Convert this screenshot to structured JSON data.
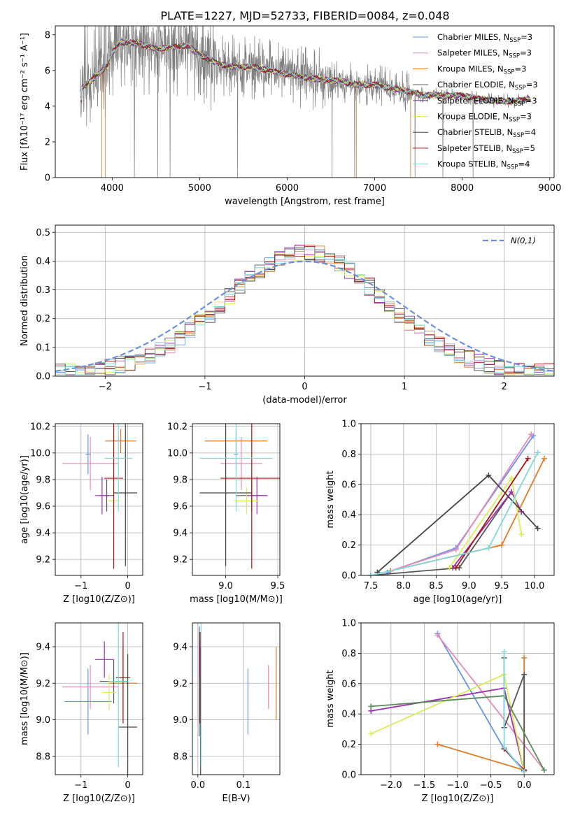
{
  "title": "PLATE=1227, MJD=52733, FIBERID=0084, z=0.048",
  "colors": [
    "#6495ed",
    "#e68ab6",
    "#e07b2a",
    "#555555",
    "#9b30b0",
    "#d7ee5a",
    "#444444",
    "#aa1111",
    "#7fd8dd"
  ],
  "chart_data": [
    {
      "type": "line",
      "id": "spectrum",
      "xlabel": "wavelength [Angstrom, rest frame]",
      "ylabel": "Flux [fλ10⁻¹⁷ erg cm⁻² s⁻¹ A⁻¹]",
      "xlim": [
        3350,
        9050
      ],
      "ylim": [
        0,
        8.5
      ],
      "xticks": [
        4000,
        5000,
        6000,
        7000,
        8000,
        9000
      ],
      "yticks": [
        0,
        2,
        4,
        6,
        8
      ],
      "legend_position": "top-right",
      "legend": [
        {
          "label": "Chabrier MILES, N",
          "sub": "SSP",
          "suffix": "=3",
          "color": "#6495ed"
        },
        {
          "label": "Salpeter MILES, N",
          "sub": "SSP",
          "suffix": "=3",
          "color": "#e68ab6"
        },
        {
          "label": "Kroupa MILES, N",
          "sub": "SSP",
          "suffix": "=3",
          "color": "#e07b2a"
        },
        {
          "label": "Chabrier ELODIE, N",
          "sub": "SSP",
          "suffix": "=3",
          "color": "#555555"
        },
        {
          "label": "Salpeter ELODIE, N",
          "sub": "SSP",
          "suffix": "=3",
          "color": "#9b30b0"
        },
        {
          "label": "Kroupa ELODIE, N",
          "sub": "SSP",
          "suffix": "=3",
          "color": "#d7ee5a"
        },
        {
          "label": "Chabrier STELIB, N",
          "sub": "SSP",
          "suffix": "=4",
          "color": "#444444"
        },
        {
          "label": "Salpeter STELIB, N",
          "sub": "SSP",
          "suffix": "=5",
          "color": "#aa1111"
        },
        {
          "label": "Kroupa STELIB, N",
          "sub": "SSP",
          "suffix": "=4",
          "color": "#7fd8dd"
        }
      ],
      "continuum": [
        [
          3650,
          5.0
        ],
        [
          3800,
          5.6
        ],
        [
          3950,
          6.3
        ],
        [
          4000,
          7.0
        ],
        [
          4100,
          7.6
        ],
        [
          4300,
          7.5
        ],
        [
          4500,
          7.2
        ],
        [
          4700,
          7.3
        ],
        [
          4850,
          7.4
        ],
        [
          5000,
          6.9
        ],
        [
          5200,
          6.4
        ],
        [
          5400,
          6.2
        ],
        [
          5600,
          6.2
        ],
        [
          5800,
          6.0
        ],
        [
          6000,
          5.8
        ],
        [
          6200,
          5.6
        ],
        [
          6400,
          5.5
        ],
        [
          6600,
          5.4
        ],
        [
          6800,
          5.2
        ],
        [
          7000,
          5.2
        ],
        [
          7200,
          5.0
        ],
        [
          7400,
          4.8
        ],
        [
          7600,
          4.6
        ],
        [
          7800,
          4.6
        ],
        [
          8000,
          4.6
        ],
        [
          8200,
          4.4
        ],
        [
          8400,
          4.3
        ],
        [
          8600,
          4.3
        ],
        [
          8750,
          4.4
        ]
      ]
    },
    {
      "type": "histogram",
      "id": "residuals",
      "xlabel": "(data-model)/error",
      "ylabel": "Normed distribution",
      "xlim": [
        -2.5,
        2.5
      ],
      "ylim": [
        0,
        0.525
      ],
      "xticks": [
        -2,
        -1,
        0,
        1,
        2
      ],
      "yticks": [
        0.0,
        0.1,
        0.2,
        0.3,
        0.4,
        0.5
      ],
      "bin_width": 0.1,
      "bin_start": -2.5,
      "legend_position": "top-right",
      "gaussian_label": "N(0,1)",
      "gaussian_color": "#6a8fe0"
    },
    {
      "type": "scatter",
      "id": "age-vs-Z",
      "xlabel": "Z [log10(Z/Z⊙)]",
      "ylabel": "age [log10(age/yr)]",
      "xlim": [
        -1.55,
        0.32
      ],
      "ylim": [
        9.08,
        10.22
      ],
      "xticks": [
        -1,
        0
      ],
      "yticks": [
        9.2,
        9.4,
        9.6,
        9.8,
        10.0,
        10.2
      ],
      "points": [
        {
          "x": -0.85,
          "y": 9.99,
          "xerr": 0.05,
          "yerr": 0.15,
          "color": "#6495ed"
        },
        {
          "x": -0.8,
          "y": 9.92,
          "xerr": 0.6,
          "yerr": 0.2,
          "color": "#e68ab6"
        },
        {
          "x": -0.15,
          "y": 10.09,
          "xerr": 0.33,
          "yerr": 0.09,
          "color": "#e07b2a"
        },
        {
          "x": -0.45,
          "y": 9.68,
          "xerr": 0.15,
          "yerr": 0.12,
          "color": "#555555"
        },
        {
          "x": -0.55,
          "y": 9.68,
          "xerr": 0.15,
          "yerr": 0.14,
          "color": "#9b30b0"
        },
        {
          "x": -0.3,
          "y": 9.64,
          "xerr": 0.12,
          "yerr": 0.1,
          "color": "#d7ee5a"
        },
        {
          "x": -0.05,
          "y": 9.7,
          "xerr": 0.25,
          "yerr": 0.55,
          "color": "#444444"
        },
        {
          "x": -0.3,
          "y": 9.81,
          "xerr": 0.2,
          "yerr": 0.68,
          "color": "#aa1111"
        },
        {
          "x": -0.2,
          "y": 9.96,
          "xerr": 0.3,
          "yerr": 0.4,
          "color": "#7fd8dd"
        }
      ]
    },
    {
      "type": "scatter",
      "id": "age-vs-mass",
      "xlabel": "mass [log10(M/M⊙)]",
      "ylabel": "",
      "xlim": [
        8.68,
        9.52
      ],
      "ylim": [
        9.08,
        10.22
      ],
      "xticks": [
        9.0,
        9.5
      ],
      "yticks": [
        9.2,
        9.4,
        9.6,
        9.8,
        10.0,
        10.2
      ],
      "points": [
        {
          "x": 9.1,
          "y": 9.99,
          "xerr": 0.02,
          "yerr": 0.15,
          "color": "#6495ed"
        },
        {
          "x": 9.15,
          "y": 9.92,
          "xerr": 0.2,
          "yerr": 0.2,
          "color": "#e68ab6"
        },
        {
          "x": 9.1,
          "y": 10.09,
          "xerr": 0.3,
          "yerr": 0.09,
          "color": "#e07b2a"
        },
        {
          "x": 9.25,
          "y": 9.68,
          "xerr": 0.15,
          "yerr": 0.12,
          "color": "#555555"
        },
        {
          "x": 9.3,
          "y": 9.68,
          "xerr": 0.1,
          "yerr": 0.14,
          "color": "#9b30b0"
        },
        {
          "x": 9.2,
          "y": 9.64,
          "xerr": 0.12,
          "yerr": 0.1,
          "color": "#d7ee5a"
        },
        {
          "x": 9.0,
          "y": 9.7,
          "xerr": 0.25,
          "yerr": 0.55,
          "color": "#444444"
        },
        {
          "x": 9.25,
          "y": 9.81,
          "xerr": 0.3,
          "yerr": 0.68,
          "color": "#aa1111"
        },
        {
          "x": 9.1,
          "y": 9.96,
          "xerr": 0.35,
          "yerr": 0.4,
          "color": "#7fd8dd"
        }
      ]
    },
    {
      "type": "line",
      "id": "weight-vs-age",
      "xlabel": "age [log10(age/yr)]",
      "ylabel": "mass weight",
      "xlim": [
        7.35,
        10.3
      ],
      "ylim": [
        0,
        1.0
      ],
      "xticks": [
        7.5,
        8.0,
        8.5,
        9.0,
        9.5,
        10.0
      ],
      "yticks": [
        0.0,
        0.2,
        0.4,
        0.6,
        0.8,
        1.0
      ],
      "series": [
        {
          "color": "#6495ed",
          "x": [
            7.75,
            8.8,
            9.98
          ],
          "y": [
            0.02,
            0.18,
            0.92
          ]
        },
        {
          "color": "#e68ab6",
          "x": [
            7.8,
            8.8,
            9.95
          ],
          "y": [
            0.03,
            0.17,
            0.93
          ]
        },
        {
          "color": "#e07b2a",
          "x": [
            7.8,
            9.5,
            10.15
          ],
          "y": [
            0.03,
            0.2,
            0.77
          ]
        },
        {
          "color": "#555555",
          "x": [
            7.5,
            8.85,
            9.65
          ],
          "y": [
            0.0,
            0.05,
            0.55
          ]
        },
        {
          "color": "#9b30b0",
          "x": [
            8.75,
            9.65,
            9.8
          ],
          "y": [
            0.05,
            0.55,
            0.42
          ]
        },
        {
          "color": "#d7ee5a",
          "x": [
            8.7,
            9.65,
            9.8
          ],
          "y": [
            0.05,
            0.64,
            0.27
          ]
        },
        {
          "color": "#444444",
          "x": [
            7.6,
            9.3,
            10.05
          ],
          "y": [
            0.02,
            0.66,
            0.31
          ]
        },
        {
          "color": "#aa1111",
          "x": [
            8.8,
            9.9
          ],
          "y": [
            0.05,
            0.77
          ]
        },
        {
          "color": "#7fd8dd",
          "x": [
            7.5,
            9.3,
            10.05
          ],
          "y": [
            0.0,
            0.18,
            0.81
          ]
        }
      ]
    },
    {
      "type": "scatter",
      "id": "mass-vs-Z",
      "xlabel": "Z [log10(Z/Z⊙)]",
      "ylabel": "mass [log10(M/M⊙)]",
      "xlim": [
        -1.55,
        0.32
      ],
      "ylim": [
        8.7,
        9.53
      ],
      "xticks": [
        -1,
        0
      ],
      "yticks": [
        8.8,
        9.0,
        9.2,
        9.4
      ],
      "points": [
        {
          "x": -0.85,
          "y": 9.1,
          "xerr": 0.5,
          "yerr": 0.18,
          "color": "#6495ed"
        },
        {
          "x": -0.8,
          "y": 9.18,
          "xerr": 0.6,
          "yerr": 0.12,
          "color": "#e68ab6"
        },
        {
          "x": -0.1,
          "y": 9.2,
          "xerr": 0.3,
          "yerr": 0.2,
          "color": "#e07b2a"
        },
        {
          "x": -0.3,
          "y": 9.21,
          "xerr": 0.3,
          "yerr": 0.12,
          "color": "#555555"
        },
        {
          "x": -0.5,
          "y": 9.33,
          "xerr": 0.2,
          "yerr": 0.1,
          "color": "#9b30b0"
        },
        {
          "x": -0.4,
          "y": 9.15,
          "xerr": 0.15,
          "yerr": 0.1,
          "color": "#d7ee5a"
        },
        {
          "x": 0.0,
          "y": 8.96,
          "xerr": 0.2,
          "yerr": 0.4,
          "color": "#444444"
        },
        {
          "x": -0.1,
          "y": 9.23,
          "xerr": 0.15,
          "yerr": 0.25,
          "color": "#aa1111"
        },
        {
          "x": -0.2,
          "y": 9.21,
          "xerr": 0.2,
          "yerr": 0.47,
          "color": "#7fd8dd"
        }
      ]
    },
    {
      "type": "scatter",
      "id": "mass-vs-EBV",
      "xlabel": "E(B-V)",
      "ylabel": "",
      "xlim": [
        -0.012,
        0.18
      ],
      "ylim": [
        8.7,
        9.53
      ],
      "xticks": [
        0.0,
        0.1
      ],
      "yticks": [
        8.8,
        9.0,
        9.2,
        9.4
      ],
      "points": [
        {
          "x": 0.11,
          "y": 9.1,
          "xerr": 0,
          "yerr": 0.18,
          "color": "#6495ed"
        },
        {
          "x": 0.155,
          "y": 9.18,
          "xerr": 0,
          "yerr": 0.12,
          "color": "#e68ab6"
        },
        {
          "x": 0.172,
          "y": 9.2,
          "xerr": 0,
          "yerr": 0.2,
          "color": "#e07b2a"
        },
        {
          "x": 0.003,
          "y": 9.21,
          "xerr": 0,
          "yerr": 0.3,
          "color": "#555555"
        },
        {
          "x": 0.004,
          "y": 9.33,
          "xerr": 0,
          "yerr": 0.1,
          "color": "#9b30b0"
        },
        {
          "x": 0.005,
          "y": 9.15,
          "xerr": 0,
          "yerr": 0.1,
          "color": "#d7ee5a"
        },
        {
          "x": 0.006,
          "y": 9.0,
          "xerr": 0,
          "yerr": 0.4,
          "color": "#444444"
        },
        {
          "x": 0.005,
          "y": 9.23,
          "xerr": 0,
          "yerr": 0.25,
          "color": "#aa1111"
        },
        {
          "x": 0.007,
          "y": 9.21,
          "xerr": 0,
          "yerr": 0.47,
          "color": "#7fd8dd"
        }
      ]
    },
    {
      "type": "line",
      "id": "weight-vs-Z",
      "xlabel": "Z [log10(Z/Z⊙)]",
      "ylabel": "mass weight",
      "xlim": [
        -2.45,
        0.45
      ],
      "ylim": [
        0,
        1.0
      ],
      "xticks": [
        -2.0,
        -1.5,
        -1.0,
        -0.5,
        0.0
      ],
      "yticks": [
        0.0,
        0.2,
        0.4,
        0.6,
        0.8,
        1.0
      ],
      "series": [
        {
          "color": "#6495ed",
          "x": [
            -1.3,
            -0.3,
            0.0
          ],
          "y": [
            0.93,
            0.17,
            0.02
          ]
        },
        {
          "color": "#e68ab6",
          "x": [
            -1.3,
            0.3
          ],
          "y": [
            0.92,
            0.03
          ]
        },
        {
          "color": "#e07b2a",
          "x": [
            -1.3,
            0.0,
            0.0
          ],
          "y": [
            0.2,
            0.03,
            0.77
          ]
        },
        {
          "color": "#555555",
          "x": [
            -0.3,
            -0.3,
            0.0,
            0.0
          ],
          "y": [
            0.77,
            0.31,
            0.66,
            0.03
          ]
        },
        {
          "color": "#9b30b0",
          "x": [
            -2.3,
            -0.3,
            0.0
          ],
          "y": [
            0.42,
            0.57,
            0.02
          ]
        },
        {
          "color": "#d7ee5a",
          "x": [
            -2.3,
            -0.3,
            0.0
          ],
          "y": [
            0.27,
            0.66,
            0.02
          ]
        },
        {
          "color": "#5a8a5a",
          "x": [
            -2.3,
            -0.3,
            0.3
          ],
          "y": [
            0.45,
            0.52,
            0.03
          ]
        },
        {
          "color": "#aa1111",
          "x": [
            -0.3,
            0.0
          ],
          "y": [
            0.17,
            0.03
          ]
        },
        {
          "color": "#7fd8dd",
          "x": [
            -0.3,
            -0.3,
            0.0
          ],
          "y": [
            0.81,
            0.18,
            0.02
          ]
        }
      ]
    }
  ]
}
